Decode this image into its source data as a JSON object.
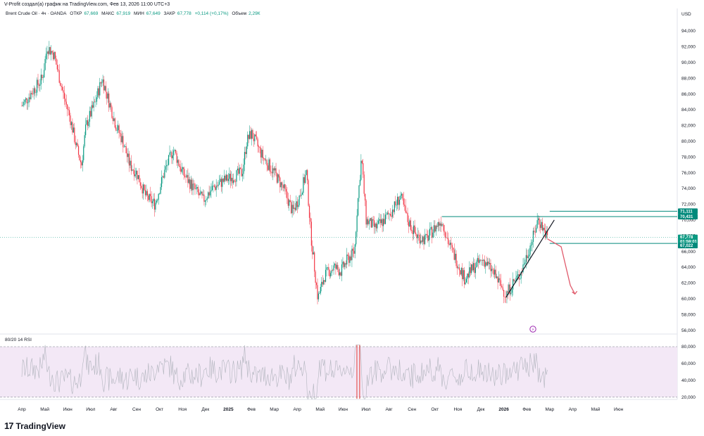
{
  "header": {
    "caption": "V-Profit создал(а) график на TradingView.com, Фев 13, 2026 11:00 UTC+3"
  },
  "legend": {
    "symbol": "Brent Crude Oil · 4ч · OANDA",
    "open_label": "ОТКР",
    "open_value": "67,669",
    "high_label": "МАКС",
    "high_value": "67,919",
    "low_label": "МИН",
    "low_value": "67,649",
    "close_label": "ЗАКР",
    "close_value": "67,778",
    "change": "+0,114 (+0,17%)",
    "volume_label": "Объем",
    "volume_value": "2,29К"
  },
  "brand": {
    "name": "TradingView"
  },
  "chart_data": [
    {
      "type": "candlestick",
      "currency": "USD",
      "ylim": [
        55,
        96
      ],
      "y_ticks": [
        "94,000",
        "92,000",
        "90,000",
        "88,000",
        "86,000",
        "84,000",
        "82,000",
        "80,000",
        "78,000",
        "76,000",
        "74,000",
        "72,000",
        "70,000",
        "68,000",
        "66,000",
        "64,000",
        "62,000",
        "60,000",
        "58,000",
        "56,000"
      ],
      "y_tick_values": [
        94,
        92,
        90,
        88,
        86,
        84,
        82,
        80,
        78,
        76,
        74,
        72,
        70,
        68,
        66,
        64,
        62,
        60,
        58,
        56
      ],
      "x_ticks": [
        "Апр",
        "Май",
        "Июн",
        "Июл",
        "Авг",
        "Сен",
        "Окт",
        "Ноя",
        "Дек",
        "2025",
        "Фев",
        "Мар",
        "Апр",
        "Май",
        "Июн",
        "Июл",
        "Авг",
        "Сен",
        "Окт",
        "Ноя",
        "Дек",
        "2026",
        "Фев",
        "Мар",
        "Апр",
        "Май",
        "Июн"
      ],
      "price_path": [
        [
          0,
          84.5
        ],
        [
          0.9,
          88
        ],
        [
          1.1,
          92
        ],
        [
          1.4,
          91
        ],
        [
          1.8,
          86
        ],
        [
          2.1,
          83
        ],
        [
          2.4,
          79
        ],
        [
          2.6,
          77
        ],
        [
          2.8,
          82
        ],
        [
          3.2,
          85
        ],
        [
          3.5,
          88
        ],
        [
          3.8,
          85
        ],
        [
          4.1,
          82
        ],
        [
          4.4,
          80
        ],
        [
          4.7,
          77
        ],
        [
          5.0,
          76
        ],
        [
          5.4,
          73
        ],
        [
          5.8,
          72
        ],
        [
          6.2,
          76
        ],
        [
          6.6,
          79
        ],
        [
          7.0,
          76
        ],
        [
          7.5,
          74
        ],
        [
          7.9,
          72.5
        ],
        [
          8.3,
          74
        ],
        [
          8.8,
          75
        ],
        [
          9.2,
          75.5
        ],
        [
          9.6,
          76
        ],
        [
          9.8,
          80
        ],
        [
          10.0,
          81
        ],
        [
          10.5,
          78
        ],
        [
          11.0,
          76
        ],
        [
          11.4,
          74
        ],
        [
          11.8,
          71
        ],
        [
          12.1,
          73
        ],
        [
          12.4,
          76
        ],
        [
          12.6,
          68
        ],
        [
          12.9,
          60
        ],
        [
          13.2,
          63
        ],
        [
          13.6,
          64
        ],
        [
          13.9,
          63.5
        ],
        [
          14.2,
          65
        ],
        [
          14.5,
          66
        ],
        [
          14.6,
          71
        ],
        [
          14.8,
          78
        ],
        [
          15.0,
          70
        ],
        [
          15.4,
          69
        ],
        [
          15.8,
          70
        ],
        [
          16.2,
          71.5
        ],
        [
          16.5,
          73
        ],
        [
          16.8,
          70
        ],
        [
          17.2,
          68
        ],
        [
          17.6,
          67.5
        ],
        [
          18.0,
          69
        ],
        [
          18.3,
          70
        ],
        [
          18.6,
          67
        ],
        [
          19.0,
          64.5
        ],
        [
          19.3,
          62.5
        ],
        [
          19.7,
          64
        ],
        [
          20.1,
          65
        ],
        [
          20.5,
          63.5
        ],
        [
          20.8,
          62
        ],
        [
          21.1,
          60.5
        ],
        [
          21.4,
          62
        ],
        [
          21.7,
          63
        ],
        [
          22.0,
          65.5
        ],
        [
          22.3,
          68
        ],
        [
          22.5,
          70.2
        ],
        [
          22.7,
          69
        ],
        [
          22.9,
          67.8
        ]
      ],
      "hlines": [
        {
          "from": 18.3,
          "price": 70.431,
          "label": "70,431"
        },
        {
          "from": 23.0,
          "price": 71.111,
          "label": "71,111"
        },
        {
          "from": 23.0,
          "price": 67.022,
          "label": "67,022"
        }
      ],
      "trendline": [
        [
          21.1,
          60.2
        ],
        [
          23.2,
          70.0
        ]
      ],
      "projection": [
        [
          22.9,
          67.6
        ],
        [
          23.5,
          66.6
        ],
        [
          23.9,
          61.7
        ],
        [
          24.1,
          60.6
        ]
      ],
      "last_price": {
        "value": 67.778,
        "label": "67,778",
        "countdown": "01:59:01"
      },
      "grid": false
    },
    {
      "type": "line",
      "title": "80/20 14 RSI",
      "ylim": [
        15,
        85
      ],
      "y_ticks": [
        "80,000",
        "60,000",
        "40,000",
        "20,000"
      ],
      "y_tick_values": [
        80,
        60,
        40,
        20
      ],
      "bands": [
        20,
        80
      ],
      "grid": false
    }
  ]
}
